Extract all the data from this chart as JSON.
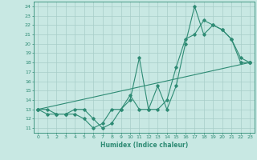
{
  "line1_x": [
    0,
    1,
    2,
    3,
    4,
    5,
    6,
    7,
    8,
    9,
    10,
    11,
    12,
    13,
    14,
    15,
    16,
    17,
    18,
    19,
    20,
    21,
    22,
    23
  ],
  "line1_y": [
    13,
    13,
    12.5,
    12.5,
    12.5,
    12,
    11,
    11.5,
    13,
    13,
    14,
    18.5,
    13,
    15.5,
    13,
    15.5,
    20,
    24,
    21,
    22,
    21.5,
    20.5,
    18,
    18
  ],
  "line2_x": [
    0,
    1,
    2,
    3,
    4,
    5,
    6,
    7,
    8,
    9,
    10,
    11,
    12,
    13,
    14,
    15,
    16,
    17,
    18,
    19,
    20,
    21,
    22,
    23
  ],
  "line2_y": [
    13,
    12.5,
    12.5,
    12.5,
    13,
    13,
    12,
    11,
    11.5,
    13,
    14.5,
    13,
    13,
    13,
    14,
    17.5,
    20.5,
    21,
    22.5,
    22,
    21.5,
    20.5,
    18.5,
    18
  ],
  "line3_x": [
    0,
    23
  ],
  "line3_y": [
    13,
    18
  ],
  "color": "#2e8b74",
  "bg_color": "#c8e8e3",
  "grid_color": "#a8cdc8",
  "xlabel": "Humidex (Indice chaleur)",
  "xlim": [
    -0.5,
    23.5
  ],
  "ylim": [
    10.5,
    24.5
  ],
  "xticks": [
    0,
    1,
    2,
    3,
    4,
    5,
    6,
    7,
    8,
    9,
    10,
    11,
    12,
    13,
    14,
    15,
    16,
    17,
    18,
    19,
    20,
    21,
    22,
    23
  ],
  "yticks": [
    11,
    12,
    13,
    14,
    15,
    16,
    17,
    18,
    19,
    20,
    21,
    22,
    23,
    24
  ],
  "marker": "D",
  "markersize": 1.8,
  "linewidth": 0.8,
  "tick_fontsize": 4.5,
  "xlabel_fontsize": 5.5
}
